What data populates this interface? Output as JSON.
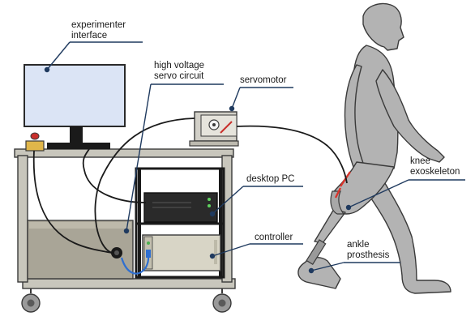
{
  "labels": {
    "experimenter_interface": [
      "experimenter",
      "interface"
    ],
    "hv_servo_circuit": [
      "high voltage",
      "servo circuit"
    ],
    "servomotor": "servomotor",
    "desktop_pc": "desktop PC",
    "controller": "controller",
    "knee_exoskeleton": [
      "knee",
      "exoskeleton"
    ],
    "ankle_prosthesis": [
      "ankle",
      "prosthesis"
    ]
  },
  "colors": {
    "leader": "#1f3a5f",
    "monitor_screen": "#dbe4f5",
    "cart": "#c8c6bc",
    "person": "#b3b3b3",
    "cable_blue": "#2f6fd0",
    "emergency_red": "#c9302c",
    "exo_red": "#d9342b"
  }
}
